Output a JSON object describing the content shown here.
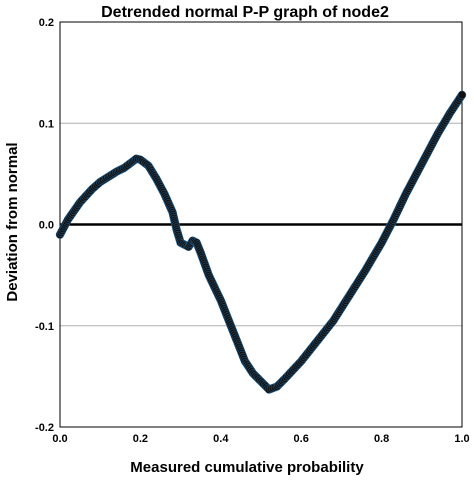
{
  "chart_data": {
    "type": "scatter",
    "title": "Detrended normal P-P graph of node2",
    "xlabel": "Measured cumulative probability",
    "ylabel": "Deviation from normal",
    "xlim": [
      0.0,
      1.0
    ],
    "ylim": [
      -0.2,
      0.2
    ],
    "x_ticks": [
      "0.0",
      "0.2",
      "0.4",
      "0.6",
      "0.8",
      "1.0"
    ],
    "y_ticks": [
      "0.2",
      "0.1",
      "0.0",
      "-0.1",
      "-0.2"
    ],
    "grid": "horizontal",
    "reference_line_y": 0.0,
    "colors": {
      "points": "#111111",
      "point_edge": "#2a7ab8",
      "reference_line": "#000000",
      "grid": "#b0b0b0"
    },
    "series": [
      {
        "points": [
          [
            0.0,
            -0.01
          ],
          [
            0.02,
            0.005
          ],
          [
            0.05,
            0.022
          ],
          [
            0.08,
            0.035
          ],
          [
            0.1,
            0.042
          ],
          [
            0.12,
            0.047
          ],
          [
            0.14,
            0.052
          ],
          [
            0.16,
            0.056
          ],
          [
            0.18,
            0.062
          ],
          [
            0.19,
            0.065
          ],
          [
            0.2,
            0.064
          ],
          [
            0.22,
            0.058
          ],
          [
            0.24,
            0.045
          ],
          [
            0.26,
            0.03
          ],
          [
            0.28,
            0.012
          ],
          [
            0.29,
            -0.005
          ],
          [
            0.3,
            -0.018
          ],
          [
            0.32,
            -0.022
          ],
          [
            0.33,
            -0.016
          ],
          [
            0.34,
            -0.018
          ],
          [
            0.35,
            -0.028
          ],
          [
            0.37,
            -0.05
          ],
          [
            0.4,
            -0.075
          ],
          [
            0.42,
            -0.095
          ],
          [
            0.44,
            -0.115
          ],
          [
            0.46,
            -0.135
          ],
          [
            0.48,
            -0.147
          ],
          [
            0.5,
            -0.155
          ],
          [
            0.52,
            -0.163
          ],
          [
            0.54,
            -0.16
          ],
          [
            0.56,
            -0.152
          ],
          [
            0.6,
            -0.135
          ],
          [
            0.64,
            -0.115
          ],
          [
            0.68,
            -0.095
          ],
          [
            0.72,
            -0.07
          ],
          [
            0.76,
            -0.045
          ],
          [
            0.8,
            -0.018
          ],
          [
            0.83,
            0.005
          ],
          [
            0.86,
            0.03
          ],
          [
            0.9,
            0.06
          ],
          [
            0.94,
            0.09
          ],
          [
            0.97,
            0.11
          ],
          [
            1.0,
            0.128
          ]
        ]
      }
    ]
  }
}
